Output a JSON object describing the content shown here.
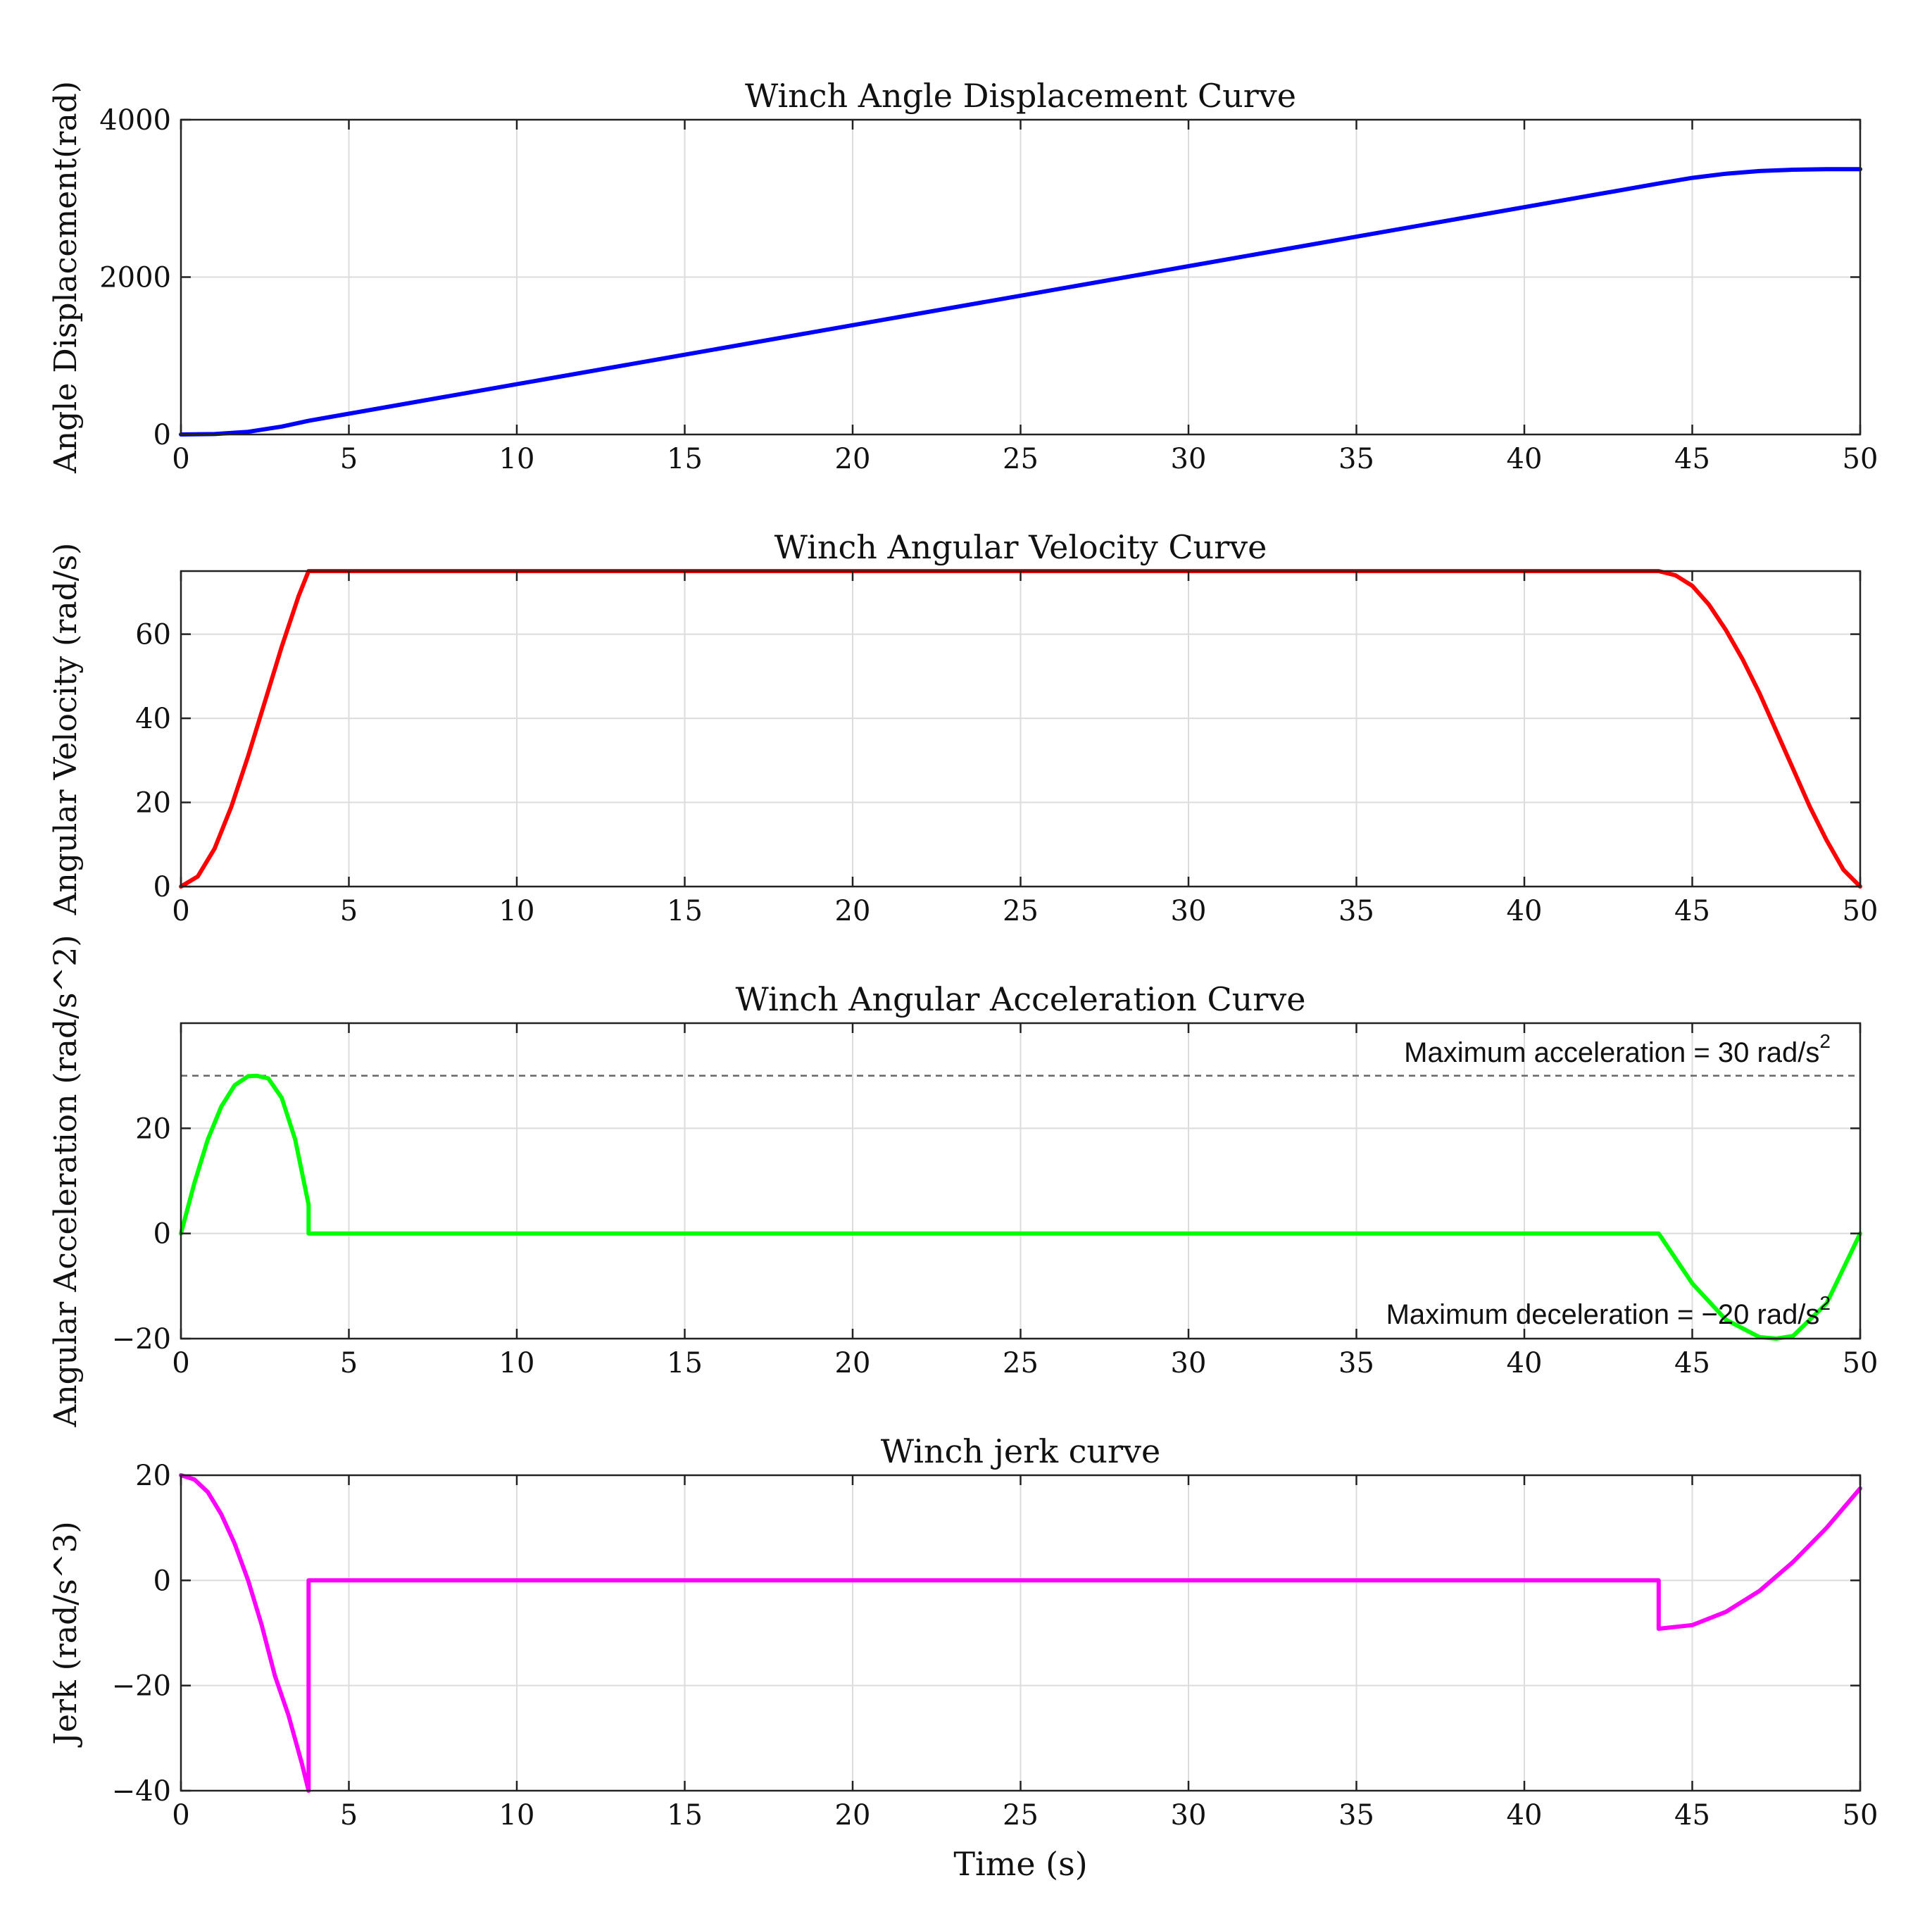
{
  "chart_data": [
    {
      "type": "line",
      "title": "Winch Angle Displacement Curve",
      "ylabel": "Angle Displacement(rad)",
      "xlabel": "",
      "xlim": [
        0,
        50
      ],
      "ylim": [
        0,
        4000
      ],
      "xticks": [
        0,
        5,
        10,
        15,
        20,
        25,
        30,
        35,
        40,
        45,
        50
      ],
      "yticks": [
        0,
        2000,
        4000
      ],
      "ytick_labels": [
        "0",
        "2000",
        "4000"
      ],
      "grid": true,
      "color": "#0000ff",
      "series": [
        {
          "x": [
            0,
            1,
            2,
            3,
            3.8,
            5,
            10,
            15,
            20,
            25,
            30,
            35,
            40,
            44,
            45,
            46,
            47,
            48,
            49,
            50
          ],
          "y": [
            0,
            5,
            34,
            100,
            174,
            264,
            639,
            1014,
            1389,
            1764,
            2139,
            2514,
            2889,
            3189,
            3261,
            3314,
            3348,
            3365,
            3372,
            3372
          ]
        }
      ],
      "annotations": []
    },
    {
      "type": "line",
      "title": "Winch Angular Velocity Curve",
      "ylabel": "Angular Velocity (rad/s)",
      "xlabel": "",
      "xlim": [
        0,
        50
      ],
      "ylim": [
        0,
        75
      ],
      "xticks": [
        0,
        5,
        10,
        15,
        20,
        25,
        30,
        35,
        40,
        45,
        50
      ],
      "yticks": [
        0,
        20,
        40,
        60
      ],
      "ytick_labels": [
        "0",
        "20",
        "40",
        "60"
      ],
      "grid": true,
      "color": "#ff0000",
      "series": [
        {
          "x": [
            0,
            0.5,
            1,
            1.5,
            2,
            2.5,
            3,
            3.5,
            3.8,
            5,
            10,
            15,
            20,
            25,
            30,
            35,
            40,
            44,
            44.5,
            45,
            45.5,
            46,
            46.5,
            47,
            47.5,
            48,
            48.5,
            49,
            49.5,
            50
          ],
          "y": [
            0,
            2.4,
            9,
            19,
            31,
            44,
            57,
            69,
            75,
            75,
            75,
            75,
            75,
            75,
            75,
            75,
            75,
            75,
            74,
            71.5,
            67,
            61,
            54,
            46,
            37,
            28,
            19,
            11,
            4,
            0
          ]
        }
      ],
      "annotations": []
    },
    {
      "type": "line",
      "title": "Winch Angular Acceleration Curve",
      "ylabel": "Angular Acceleration (rad/s^2)",
      "xlabel": "",
      "xlim": [
        0,
        50
      ],
      "ylim": [
        -20,
        40
      ],
      "xticks": [
        0,
        5,
        10,
        15,
        20,
        25,
        30,
        35,
        40,
        45,
        50
      ],
      "yticks": [
        -20,
        0,
        20
      ],
      "ytick_labels": [
        "−20",
        "0",
        "20"
      ],
      "grid": true,
      "color": "#00ff00",
      "series": [
        {
          "x": [
            0,
            0.4,
            0.8,
            1.2,
            1.6,
            2.0,
            2.25,
            2.6,
            3.0,
            3.4,
            3.8,
            3.8,
            10,
            20,
            30,
            40,
            44,
            45,
            46,
            47,
            47.5,
            48,
            49,
            50
          ],
          "y": [
            0,
            9.6,
            17.9,
            24.1,
            28.2,
            29.9,
            30,
            29.5,
            25.8,
            17.9,
            5.5,
            0,
            0,
            0,
            0,
            0,
            0,
            -9.5,
            -16.4,
            -19.7,
            -20,
            -19.5,
            -13.3,
            0
          ]
        }
      ],
      "reference_lines": [
        {
          "y": 30,
          "style": "dashed"
        }
      ],
      "annotations": [
        {
          "text": "Maximum acceleration = 30 rad/s",
          "superscript": "2"
        },
        {
          "text": "Maximum deceleration = −20 rad/s",
          "superscript": "2"
        }
      ]
    },
    {
      "type": "line",
      "title": "Winch jerk curve",
      "ylabel": "Jerk (rad/s^3)",
      "xlabel": "Time (s)",
      "xlim": [
        0,
        50
      ],
      "ylim": [
        -40,
        20
      ],
      "xticks": [
        0,
        5,
        10,
        15,
        20,
        25,
        30,
        35,
        40,
        45,
        50
      ],
      "yticks": [
        -40,
        -20,
        0,
        20
      ],
      "ytick_labels": [
        "−40",
        "−20",
        "0",
        "20"
      ],
      "grid": true,
      "color": "#ff00ff",
      "series": [
        {
          "x": [
            0,
            0.4,
            0.8,
            1.2,
            1.6,
            2.0,
            2.4,
            2.8,
            3.2,
            3.6,
            3.8,
            3.8,
            10,
            20,
            30,
            40,
            44,
            44,
            45,
            46,
            47,
            48,
            49,
            50
          ],
          "y": [
            20,
            19.2,
            16.8,
            12.6,
            7.0,
            0,
            -8.4,
            -18.2,
            -25.6,
            -34.8,
            -40,
            0,
            0,
            0,
            0,
            0,
            0,
            -9.2,
            -8.5,
            -6.0,
            -2.0,
            3.5,
            10.0,
            17.5
          ]
        }
      ],
      "annotations": []
    }
  ],
  "tick_labels_x": [
    "0",
    "5",
    "10",
    "15",
    "20",
    "25",
    "30",
    "35",
    "40",
    "45",
    "50"
  ]
}
